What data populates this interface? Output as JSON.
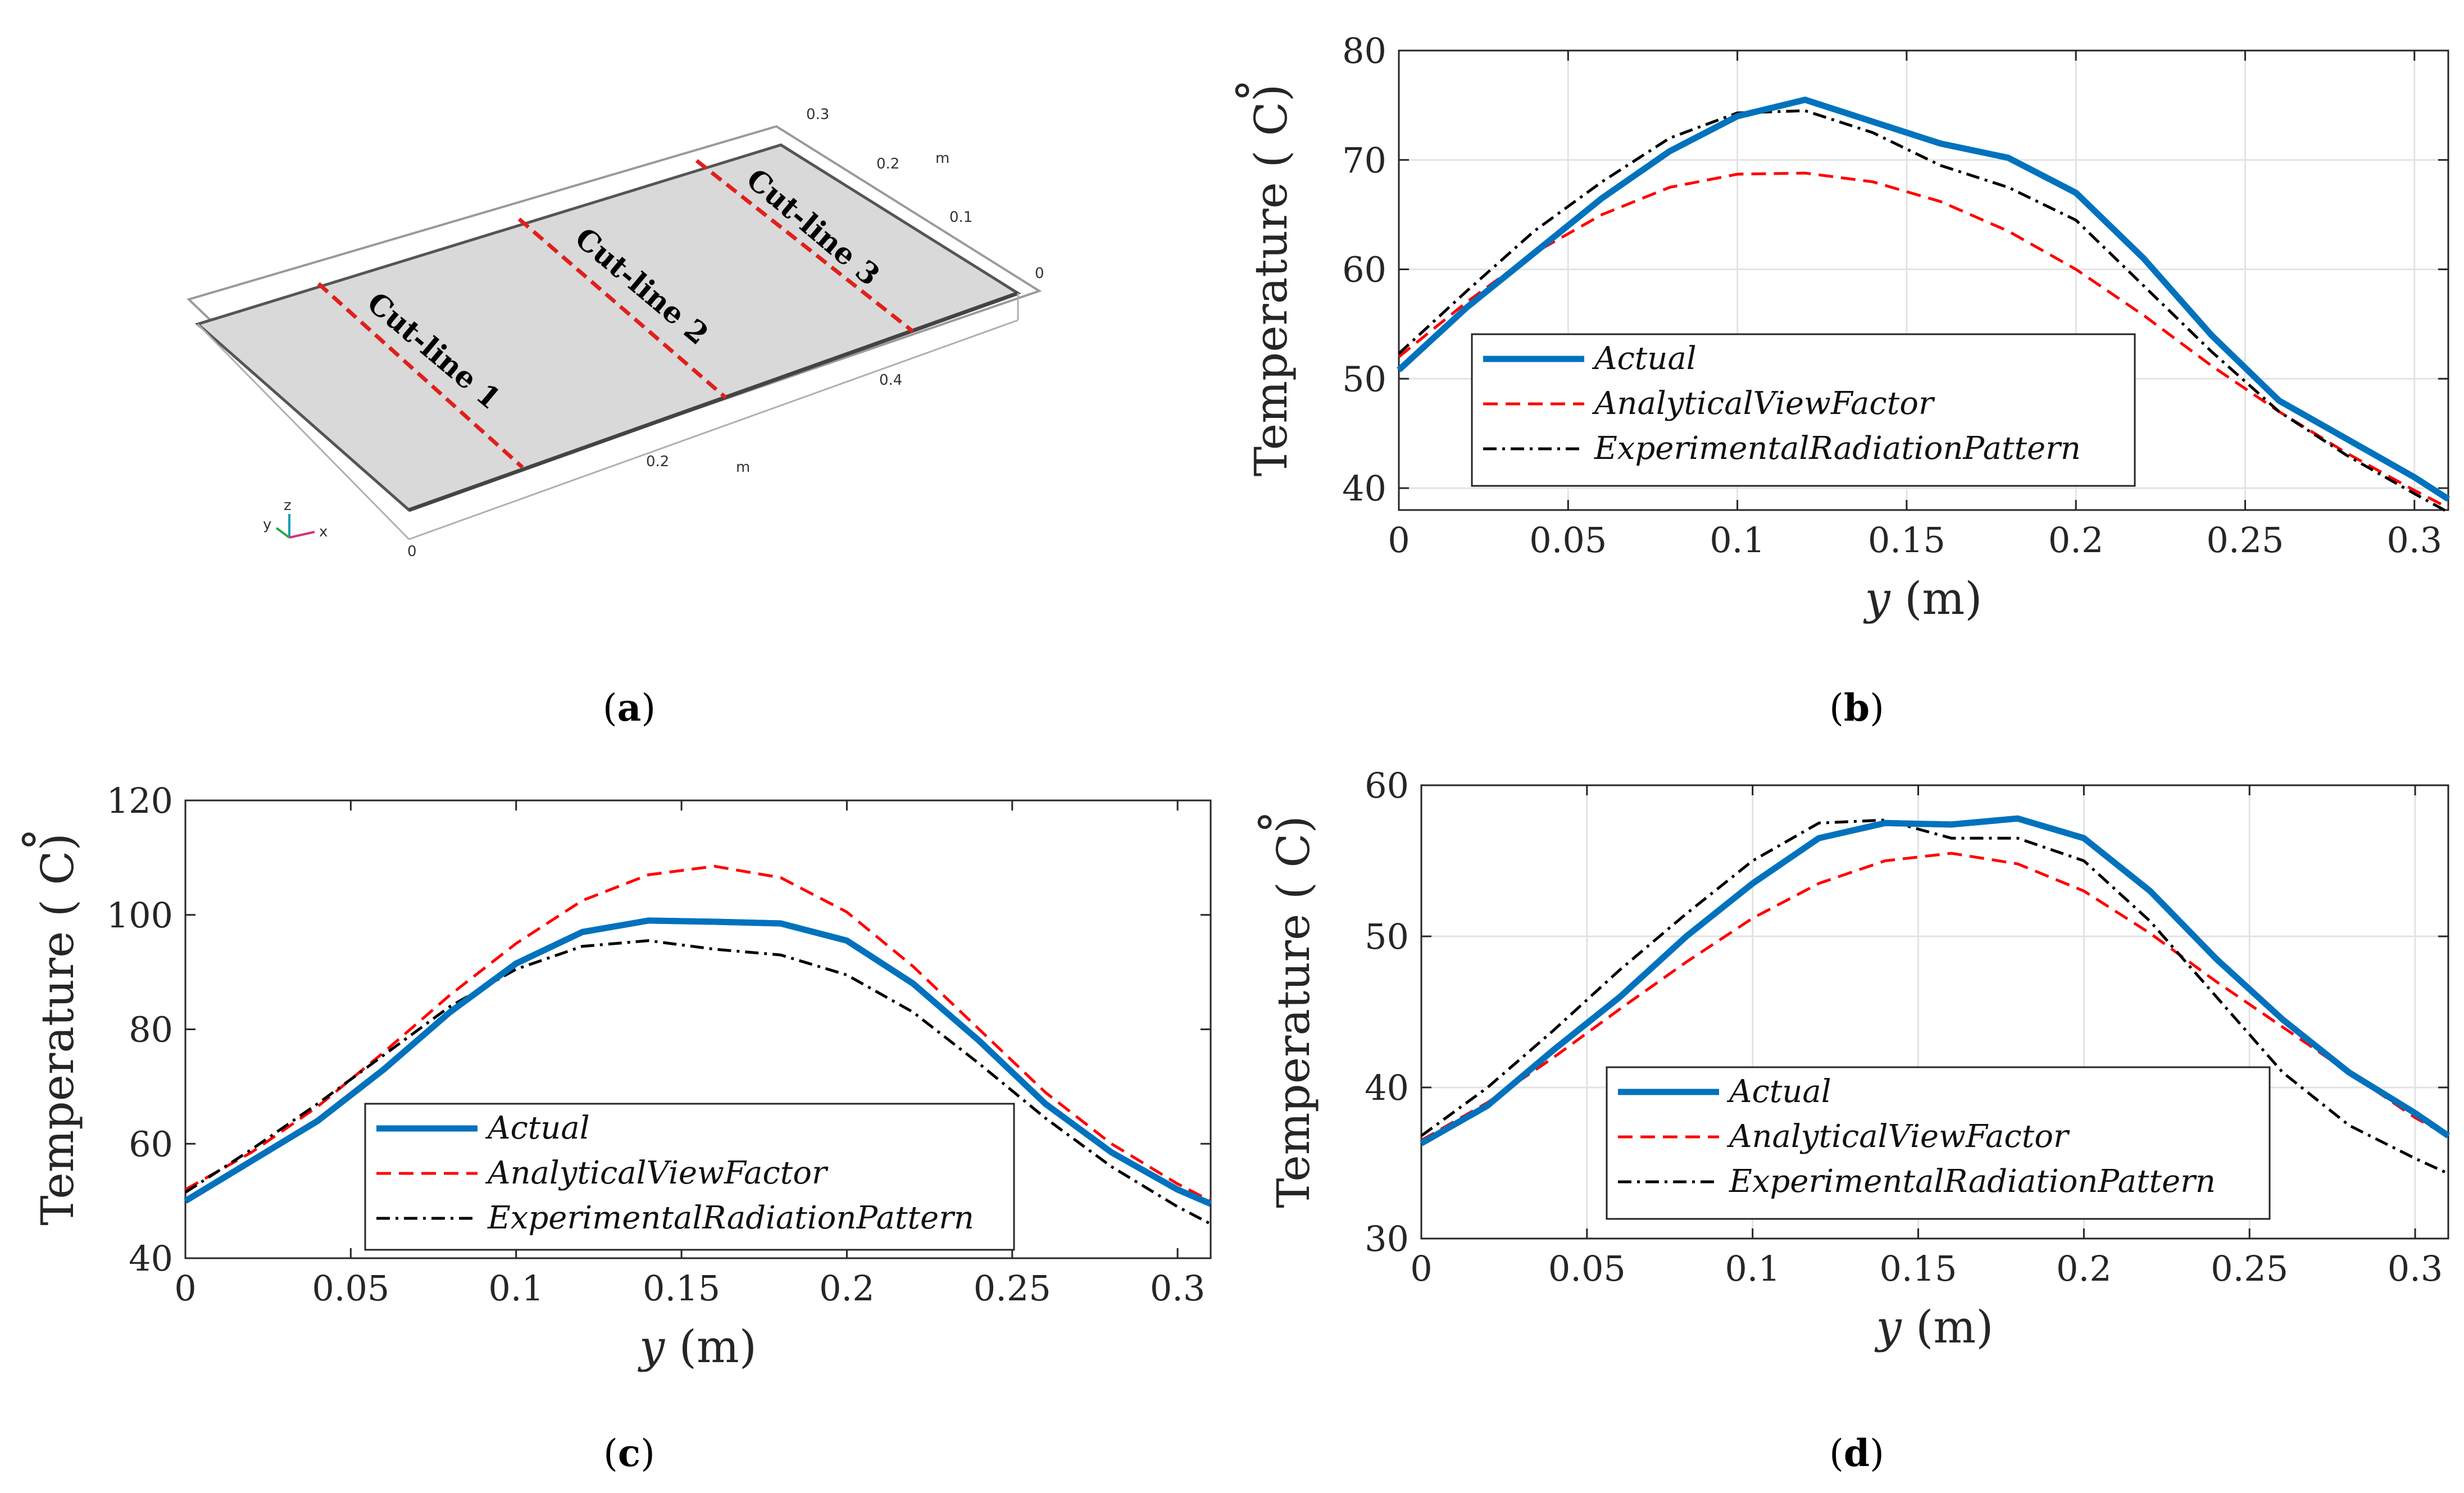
{
  "panel_a": {
    "cut_labels": [
      "Cut-line 1",
      "Cut-line 2",
      "Cut-line 3"
    ],
    "x_ticks": [
      "0",
      "0.2",
      "0.4"
    ],
    "x_unit": "m",
    "y_ticks": [
      "0",
      "0.1",
      "0.2",
      "0.3"
    ],
    "y_unit": "m",
    "triad": [
      "y",
      "z",
      "x"
    ],
    "caption_letter": "a"
  },
  "chart_data": [
    {
      "id": "b",
      "type": "line",
      "caption_letter": "b",
      "xlabel_var": "y",
      "xlabel_unit": "(m)",
      "ylabel": "Temperature",
      "ylabel_unit": "( C)",
      "ylabel_deg": "°",
      "xlim": [
        0,
        0.31
      ],
      "ylim": [
        38,
        80
      ],
      "xticks": [
        0,
        0.05,
        0.1,
        0.15,
        0.2,
        0.25,
        0.3
      ],
      "xtick_labels": [
        "0",
        "0.05",
        "0.1",
        "0.15",
        "0.2",
        "0.25",
        "0.3"
      ],
      "yticks": [
        40,
        50,
        60,
        70,
        80
      ],
      "ytick_labels": [
        "40",
        "50",
        "60",
        "70",
        "80"
      ],
      "grid": true,
      "legend_position": "lower-left",
      "series": [
        {
          "name": "Actual",
          "color": "#0072BD",
          "style": "solid",
          "x": [
            0,
            0.02,
            0.04,
            0.06,
            0.08,
            0.1,
            0.12,
            0.14,
            0.16,
            0.18,
            0.2,
            0.22,
            0.24,
            0.26,
            0.28,
            0.3,
            0.31
          ],
          "y": [
            50.8,
            56.5,
            61.5,
            66.5,
            70.8,
            74.0,
            75.5,
            73.5,
            71.5,
            70.2,
            67.0,
            61.0,
            54.0,
            48.0,
            44.5,
            41.0,
            39.0
          ]
        },
        {
          "name": "AnalyticalViewFactor",
          "color": "#FF0000",
          "style": "dashed",
          "x": [
            0,
            0.02,
            0.04,
            0.06,
            0.08,
            0.1,
            0.12,
            0.14,
            0.16,
            0.18,
            0.2,
            0.22,
            0.24,
            0.26,
            0.28,
            0.3,
            0.31
          ],
          "y": [
            52.0,
            57.0,
            61.5,
            65.0,
            67.5,
            68.7,
            68.8,
            68.0,
            66.2,
            63.5,
            60.0,
            55.8,
            51.2,
            47.0,
            43.2,
            39.8,
            38.2
          ]
        },
        {
          "name": "ExperimentalRadiationPattern",
          "color": "#000000",
          "style": "dashdot",
          "x": [
            0,
            0.02,
            0.04,
            0.06,
            0.08,
            0.1,
            0.12,
            0.14,
            0.16,
            0.18,
            0.2,
            0.22,
            0.24,
            0.26,
            0.28,
            0.3,
            0.31
          ],
          "y": [
            52.3,
            58.0,
            63.5,
            68.0,
            72.0,
            74.3,
            74.5,
            72.5,
            69.5,
            67.5,
            64.5,
            58.5,
            52.5,
            47.0,
            43.0,
            39.5,
            37.8
          ]
        }
      ]
    },
    {
      "id": "c",
      "type": "line",
      "caption_letter": "c",
      "xlabel_var": "y",
      "xlabel_unit": "(m)",
      "ylabel": "Temperature",
      "ylabel_unit": "( C)",
      "ylabel_deg": "°",
      "xlim": [
        0,
        0.31
      ],
      "ylim": [
        40,
        120
      ],
      "xticks": [
        0,
        0.05,
        0.1,
        0.15,
        0.2,
        0.25,
        0.3
      ],
      "xtick_labels": [
        "0",
        "0.05",
        "0.1",
        "0.15",
        "0.2",
        "0.25",
        "0.3"
      ],
      "yticks": [
        40,
        60,
        80,
        100,
        120
      ],
      "ytick_labels": [
        "40",
        "60",
        "80",
        "100",
        "120"
      ],
      "grid": false,
      "legend_position": "lower-left",
      "series": [
        {
          "name": "Actual",
          "color": "#0072BD",
          "style": "solid",
          "x": [
            0,
            0.02,
            0.04,
            0.06,
            0.08,
            0.1,
            0.12,
            0.14,
            0.16,
            0.18,
            0.2,
            0.22,
            0.24,
            0.26,
            0.28,
            0.3,
            0.31
          ],
          "y": [
            50.0,
            57.0,
            64.0,
            73.0,
            83.0,
            91.5,
            97.0,
            99.0,
            98.8,
            98.5,
            95.5,
            88.0,
            78.0,
            67.0,
            58.5,
            52.0,
            49.5
          ]
        },
        {
          "name": "AnalyticalViewFactor",
          "color": "#FF0000",
          "style": "dashed",
          "x": [
            0,
            0.02,
            0.04,
            0.06,
            0.08,
            0.1,
            0.12,
            0.14,
            0.16,
            0.18,
            0.2,
            0.22,
            0.24,
            0.26,
            0.28,
            0.3,
            0.31
          ],
          "y": [
            52.0,
            58.5,
            66.5,
            76.0,
            86.0,
            95.0,
            102.5,
            107.0,
            108.5,
            106.5,
            100.5,
            91.0,
            80.0,
            69.0,
            60.0,
            53.0,
            50.0
          ]
        },
        {
          "name": "ExperimentalRadiationPattern",
          "color": "#000000",
          "style": "dashdot",
          "x": [
            0,
            0.02,
            0.04,
            0.06,
            0.08,
            0.1,
            0.12,
            0.14,
            0.16,
            0.18,
            0.2,
            0.22,
            0.24,
            0.26,
            0.28,
            0.3,
            0.31
          ],
          "y": [
            51.5,
            59.0,
            67.0,
            75.5,
            84.0,
            90.5,
            94.5,
            95.5,
            94.0,
            93.0,
            89.5,
            83.0,
            74.0,
            64.5,
            56.0,
            49.0,
            46.0
          ]
        }
      ]
    },
    {
      "id": "d",
      "type": "line",
      "caption_letter": "d",
      "xlabel_var": "y",
      "xlabel_unit": "(m)",
      "ylabel": "Temperature",
      "ylabel_unit": "( C)",
      "ylabel_deg": "°",
      "xlim": [
        0,
        0.31
      ],
      "ylim": [
        30,
        60
      ],
      "xticks": [
        0,
        0.05,
        0.1,
        0.15,
        0.2,
        0.25,
        0.3
      ],
      "xtick_labels": [
        "0",
        "0.05",
        "0.1",
        "0.15",
        "0.2",
        "0.25",
        "0.3"
      ],
      "yticks": [
        30,
        40,
        50,
        60
      ],
      "ytick_labels": [
        "30",
        "40",
        "50",
        "60"
      ],
      "grid": true,
      "legend_position": "lower-left",
      "series": [
        {
          "name": "Actual",
          "color": "#0072BD",
          "style": "solid",
          "x": [
            0,
            0.02,
            0.04,
            0.06,
            0.08,
            0.1,
            0.12,
            0.14,
            0.16,
            0.18,
            0.2,
            0.22,
            0.24,
            0.26,
            0.28,
            0.3,
            0.31
          ],
          "y": [
            36.3,
            38.8,
            42.5,
            46.0,
            50.0,
            53.5,
            56.5,
            57.5,
            57.4,
            57.8,
            56.5,
            53.0,
            48.5,
            44.5,
            41.0,
            38.3,
            36.8
          ]
        },
        {
          "name": "AnalyticalViewFactor",
          "color": "#FF0000",
          "style": "dashed",
          "x": [
            0,
            0.02,
            0.04,
            0.06,
            0.08,
            0.1,
            0.12,
            0.14,
            0.16,
            0.18,
            0.2,
            0.22,
            0.24,
            0.26,
            0.28,
            0.3,
            0.31
          ],
          "y": [
            36.5,
            39.0,
            42.0,
            45.2,
            48.3,
            51.2,
            53.5,
            55.0,
            55.5,
            54.8,
            53.0,
            50.2,
            47.0,
            44.0,
            41.0,
            38.0,
            36.8
          ]
        },
        {
          "name": "ExperimentalRadiationPattern",
          "color": "#000000",
          "style": "dashdot",
          "x": [
            0,
            0.02,
            0.04,
            0.06,
            0.08,
            0.1,
            0.12,
            0.14,
            0.16,
            0.18,
            0.2,
            0.22,
            0.24,
            0.26,
            0.28,
            0.3,
            0.31
          ],
          "y": [
            36.8,
            40.0,
            43.8,
            47.8,
            51.5,
            55.0,
            57.5,
            57.7,
            56.5,
            56.5,
            55.0,
            51.0,
            46.0,
            41.0,
            37.5,
            35.3,
            34.3
          ]
        }
      ]
    }
  ]
}
